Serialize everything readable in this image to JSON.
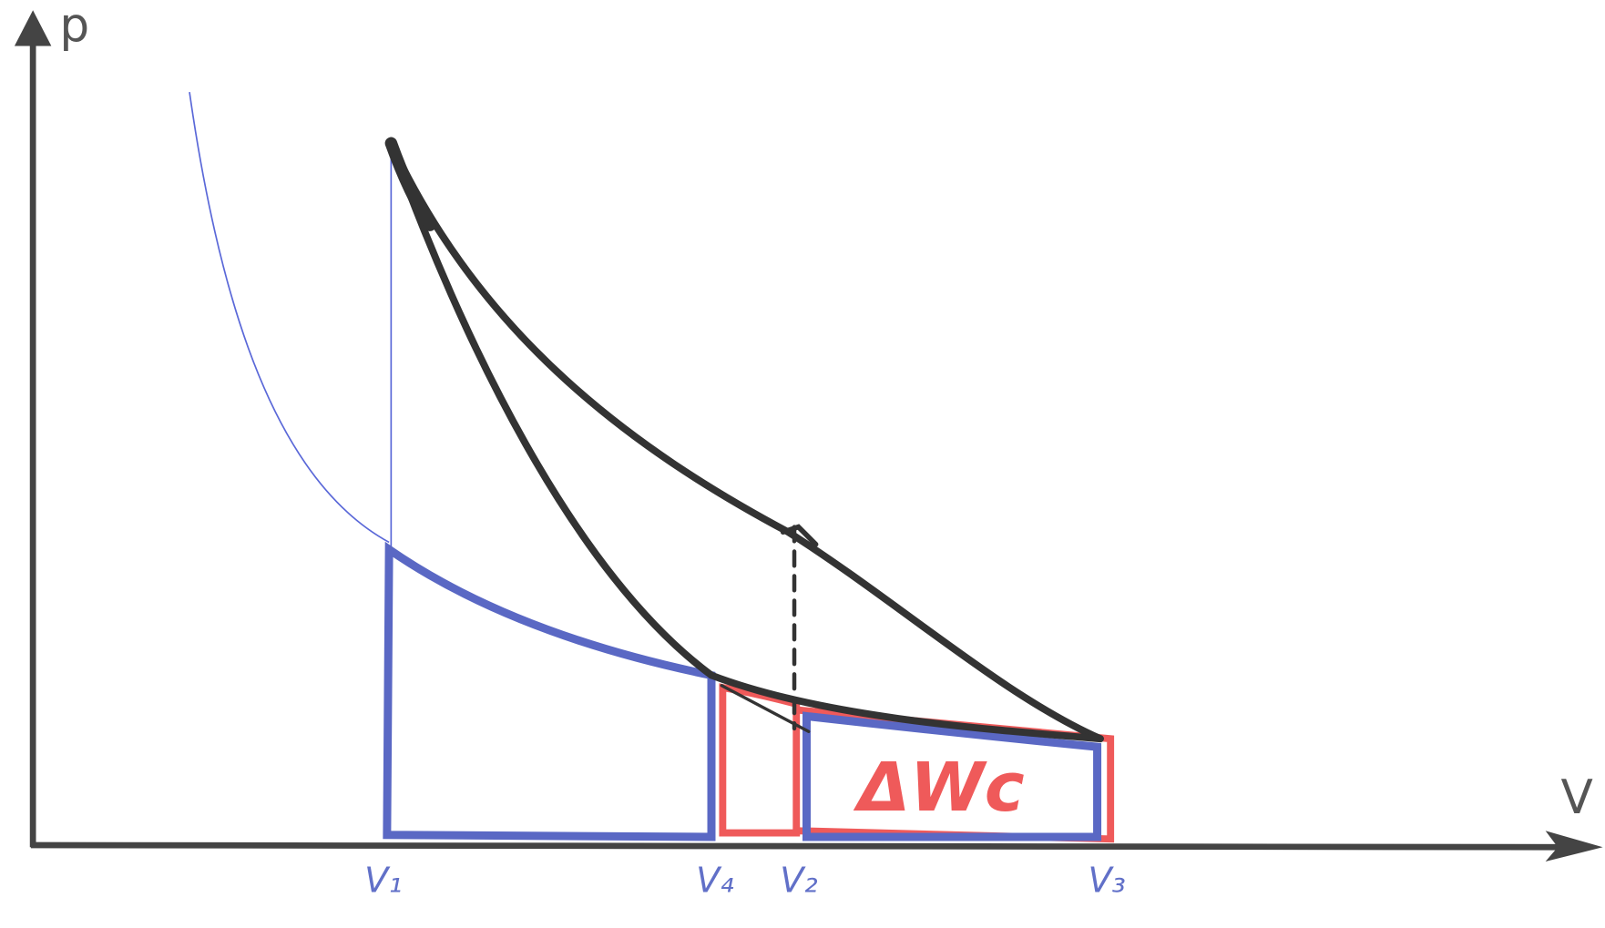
{
  "axes": {
    "y_label": "p",
    "x_label": "V"
  },
  "volume_labels": [
    "V₁",
    "V₄",
    "V₂",
    "V₃"
  ],
  "annotation": "ΔWc"
}
